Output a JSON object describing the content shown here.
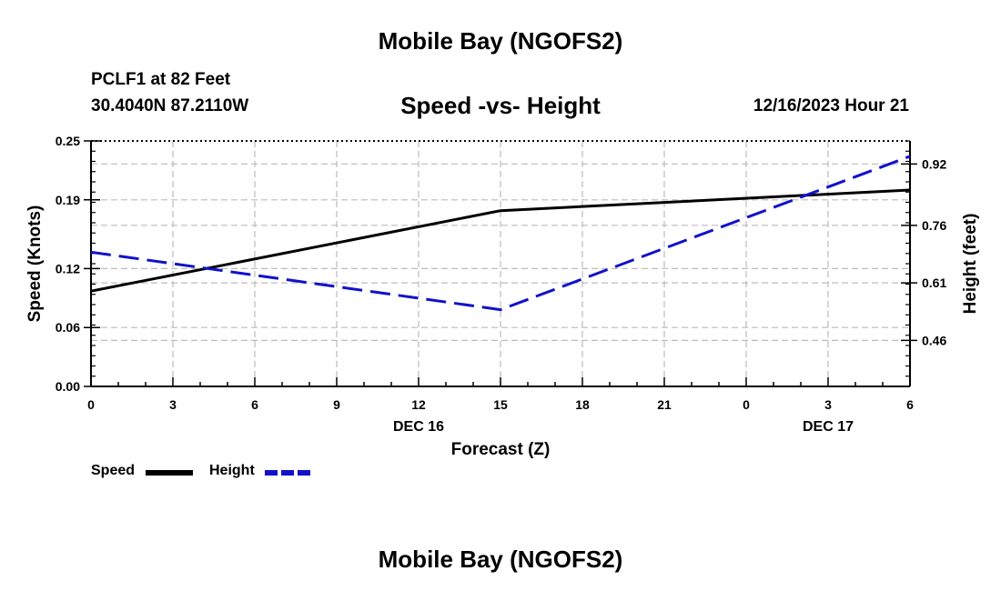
{
  "header": {
    "title": "Mobile Bay (NGOFS2)",
    "station": "PCLF1 at 82 Feet",
    "coords": "30.4040N  87.2110W",
    "subtitle": "Speed -vs- Height",
    "datetime": "12/16/2023 Hour 21"
  },
  "footer": {
    "title": "Mobile Bay (NGOFS2)"
  },
  "chart_data": {
    "type": "line",
    "x": [
      0,
      3,
      6,
      9,
      12,
      15,
      18,
      21,
      24,
      27,
      30
    ],
    "xtick_labels": [
      "0",
      "3",
      "6",
      "9",
      "12",
      "15",
      "18",
      "21",
      "0",
      "3",
      "6"
    ],
    "day_labels": [
      {
        "x": 12,
        "label": "DEC 16"
      },
      {
        "x": 27,
        "label": "DEC 17"
      }
    ],
    "xlabel": "Forecast (Z)",
    "xlim": [
      0,
      30
    ],
    "ylabel": "Speed (Knots)",
    "ylim": [
      0,
      0.25
    ],
    "yticks": [
      0.0,
      0.06,
      0.12,
      0.19,
      0.25
    ],
    "ytick_labels": [
      "0.00",
      "0.06",
      "0.12",
      "0.19",
      "0.25"
    ],
    "y2label": "Height (feet)",
    "y2lim": [
      0.34,
      0.98
    ],
    "y2ticks": [
      0.46,
      0.61,
      0.76,
      0.92
    ],
    "y2tick_labels": [
      "0.46",
      "0.61",
      "0.76",
      "0.92"
    ],
    "grid": true,
    "series": [
      {
        "name": "Speed",
        "axis": "left",
        "color": "#000000",
        "style": "solid",
        "x": [
          0,
          15,
          30
        ],
        "values": [
          0.097,
          0.179,
          0.2
        ]
      },
      {
        "name": "Height",
        "axis": "right",
        "color": "#1111cc",
        "style": "dashed",
        "x": [
          0,
          15,
          30
        ],
        "values": [
          0.69,
          0.54,
          0.94
        ]
      }
    ]
  },
  "legend": {
    "items": [
      {
        "label": "Speed",
        "color": "#000000",
        "style": "solid"
      },
      {
        "label": "Height",
        "color": "#1111cc",
        "style": "dashed"
      }
    ]
  }
}
